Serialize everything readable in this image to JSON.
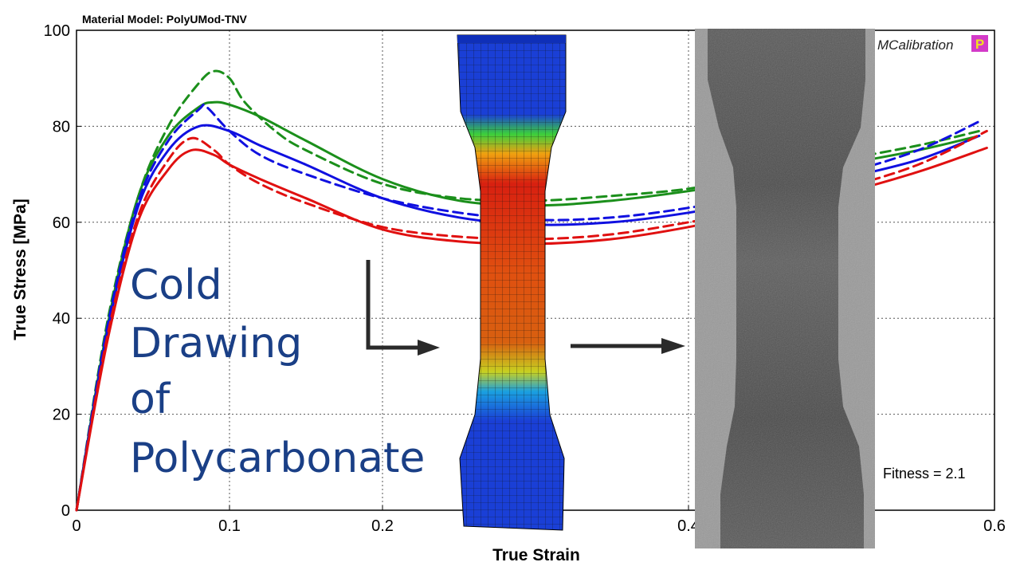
{
  "chart_data": {
    "type": "line",
    "title": "Material Model: PolyUMod-TNV",
    "brand": "MCalibration",
    "brand_badge": "P",
    "xlabel": "True Strain",
    "ylabel": "True Stress [MPa]",
    "xlim": [
      0,
      0.6
    ],
    "ylim": [
      0,
      100
    ],
    "x_ticks": [
      0,
      0.1,
      0.2,
      0.3,
      0.4,
      0.5,
      0.6
    ],
    "x_tick_labels": [
      "0",
      "0.1",
      "0.2",
      "",
      "0.4",
      "",
      "0.6"
    ],
    "y_ticks": [
      0,
      20,
      40,
      60,
      80,
      100
    ],
    "y_tick_labels": [
      "0",
      "20",
      "40",
      "60",
      "80",
      "100"
    ],
    "grid": true,
    "annotation": "Fitness = 2.1",
    "colors": {
      "green": "#1b8f1b",
      "blue": "#1010e0",
      "red": "#e01010"
    },
    "series": [
      {
        "color": "green",
        "style": "solid",
        "x": [
          0,
          0.02,
          0.04,
          0.06,
          0.08,
          0.09,
          0.1,
          0.12,
          0.15,
          0.2,
          0.25,
          0.3,
          0.35,
          0.4,
          0.45,
          0.5,
          0.55,
          0.59
        ],
        "y": [
          0,
          38,
          65,
          78,
          84,
          85,
          84.5,
          82,
          77,
          69,
          64.5,
          63.5,
          64.5,
          66.5,
          69,
          72,
          75,
          78
        ]
      },
      {
        "color": "green",
        "style": "dashed",
        "x": [
          0,
          0.02,
          0.04,
          0.06,
          0.08,
          0.09,
          0.1,
          0.11,
          0.13,
          0.15,
          0.2,
          0.25,
          0.3,
          0.35,
          0.4,
          0.45,
          0.5,
          0.55,
          0.59
        ],
        "y": [
          0,
          39,
          65,
          80,
          89,
          91.5,
          90,
          85,
          79,
          75,
          68,
          65,
          64.5,
          65.5,
          67,
          70,
          73,
          76,
          79
        ]
      },
      {
        "color": "blue",
        "style": "solid",
        "x": [
          0,
          0.02,
          0.04,
          0.06,
          0.08,
          0.1,
          0.12,
          0.15,
          0.2,
          0.25,
          0.3,
          0.35,
          0.4,
          0.45,
          0.5,
          0.55,
          0.59
        ],
        "y": [
          0,
          37,
          63,
          75,
          80,
          79,
          76,
          72,
          65,
          61,
          59.5,
          60,
          62,
          65,
          69,
          73,
          78
        ]
      },
      {
        "color": "blue",
        "style": "dashed",
        "x": [
          0,
          0.02,
          0.04,
          0.06,
          0.08,
          0.085,
          0.1,
          0.12,
          0.15,
          0.2,
          0.25,
          0.3,
          0.35,
          0.4,
          0.45,
          0.5,
          0.55,
          0.59
        ],
        "y": [
          0,
          38,
          64,
          77,
          83.5,
          84,
          79,
          74,
          70,
          65,
          62,
          60.5,
          61,
          63,
          66,
          70,
          75,
          81
        ]
      },
      {
        "color": "red",
        "style": "solid",
        "x": [
          0,
          0.02,
          0.04,
          0.06,
          0.075,
          0.09,
          0.1,
          0.12,
          0.15,
          0.2,
          0.25,
          0.3,
          0.35,
          0.4,
          0.45,
          0.5,
          0.55,
          0.595
        ],
        "y": [
          0,
          35,
          60,
          71,
          75,
          74,
          72,
          69,
          65,
          58.5,
          56,
          55.5,
          56.5,
          59,
          62.5,
          66,
          70.5,
          75.5
        ]
      },
      {
        "color": "red",
        "style": "dashed",
        "x": [
          0,
          0.02,
          0.04,
          0.06,
          0.075,
          0.09,
          0.1,
          0.12,
          0.15,
          0.2,
          0.25,
          0.3,
          0.35,
          0.4,
          0.45,
          0.5,
          0.55,
          0.595
        ],
        "y": [
          0,
          36,
          61,
          73,
          77.5,
          75,
          72,
          68,
          64,
          59,
          57,
          56.5,
          57.5,
          60,
          63,
          67,
          72,
          79
        ]
      }
    ]
  },
  "overlay": {
    "lines": [
      "Cold",
      "Drawing",
      "of",
      "Polycarbonate"
    ]
  }
}
